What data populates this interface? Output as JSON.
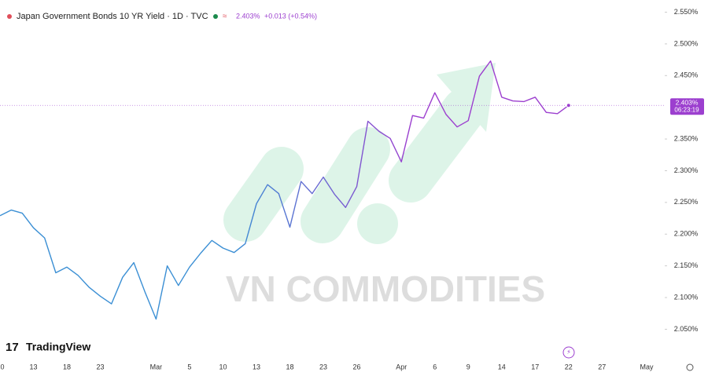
{
  "chart_data": {
    "type": "line",
    "title": "Japan Government Bonds 10 YR Yield · 1D · TVC",
    "legend_price": "2.403%",
    "legend_change": "+0.013 (+0.54%)",
    "last_price_label": "2.403%",
    "countdown": "06:23:19",
    "brand": "TradingView",
    "watermark": "VN COMMODITIES",
    "colors": [
      "#3b8fd4",
      "#9c3fcf"
    ],
    "categories": [
      "0",
      null,
      null,
      "13",
      null,
      null,
      "18",
      null,
      null,
      "23",
      null,
      null,
      null,
      null,
      "Mar",
      null,
      null,
      "5",
      null,
      null,
      "10",
      null,
      null,
      "13",
      null,
      null,
      "18",
      null,
      null,
      "23",
      null,
      null,
      "26",
      null,
      null,
      null,
      "Apr",
      null,
      null,
      "6",
      null,
      null,
      "9",
      null,
      null,
      "14",
      null,
      null,
      "17",
      null,
      null,
      "22",
      null,
      null,
      "27",
      null,
      null,
      null,
      "May"
    ],
    "values": [
      2.229,
      2.238,
      2.233,
      2.21,
      2.194,
      2.139,
      2.148,
      2.135,
      2.116,
      2.102,
      2.09,
      2.132,
      2.155,
      2.109,
      2.066,
      2.15,
      2.119,
      2.148,
      2.17,
      2.19,
      2.178,
      2.171,
      2.185,
      2.248,
      2.278,
      2.264,
      2.211,
      2.283,
      2.264,
      2.29,
      2.263,
      2.242,
      2.275,
      2.378,
      2.362,
      2.351,
      2.314,
      2.387,
      2.383,
      2.423,
      2.389,
      2.369,
      2.379,
      2.449,
      2.473,
      2.416,
      2.41,
      2.409,
      2.416,
      2.392,
      2.39,
      2.403,
      null,
      null,
      null,
      null,
      null,
      null,
      null
    ],
    "ylim": [
      2.0295,
      2.5692
    ],
    "yticks": [
      {
        "value": 2.05,
        "label": "2.050%"
      },
      {
        "value": 2.1,
        "label": "2.100%"
      },
      {
        "value": 2.15,
        "label": "2.150%"
      },
      {
        "value": 2.2,
        "label": "2.200%"
      },
      {
        "value": 2.25,
        "label": "2.250%"
      },
      {
        "value": 2.3,
        "label": "2.300%"
      },
      {
        "value": 2.35,
        "label": "2.350%"
      },
      {
        "value": 2.45,
        "label": "2.450%"
      },
      {
        "value": 2.5,
        "label": "2.500%"
      },
      {
        "value": 2.55,
        "label": "2.550%"
      }
    ]
  }
}
